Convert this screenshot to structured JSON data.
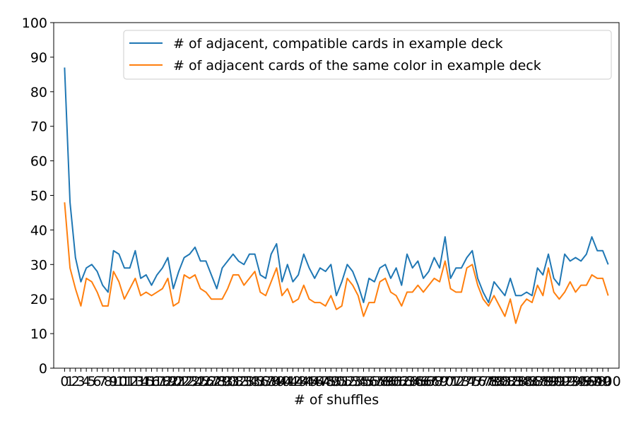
{
  "chart_data": {
    "type": "line",
    "xlabel": "# of shuffles",
    "ylabel": "",
    "ylim": [
      0,
      100
    ],
    "yticks": [
      0,
      10,
      20,
      30,
      40,
      50,
      60,
      70,
      80,
      90,
      100
    ],
    "xlim": [
      -2,
      102
    ],
    "grid": false,
    "legend_position": "top-right",
    "x": [
      0,
      1,
      2,
      3,
      4,
      5,
      6,
      7,
      8,
      9,
      10,
      11,
      12,
      13,
      14,
      15,
      16,
      17,
      18,
      19,
      20,
      21,
      22,
      23,
      24,
      25,
      26,
      27,
      28,
      29,
      30,
      31,
      32,
      33,
      34,
      35,
      36,
      37,
      38,
      39,
      40,
      41,
      42,
      43,
      44,
      45,
      46,
      47,
      48,
      49,
      50,
      51,
      52,
      53,
      54,
      55,
      56,
      57,
      58,
      59,
      60,
      61,
      62,
      63,
      64,
      65,
      66,
      67,
      68,
      69,
      70,
      71,
      72,
      73,
      74,
      75,
      76,
      77,
      78,
      79,
      80,
      81,
      82,
      83,
      84,
      85,
      86,
      87,
      88,
      89,
      90,
      91,
      92,
      93,
      94,
      95,
      96,
      97,
      98,
      99,
      100
    ],
    "series": [
      {
        "name": "# of adjacent, compatible cards in example deck",
        "color": "#1f77b4",
        "values": [
          87,
          48,
          32,
          25,
          29,
          30,
          28,
          24,
          22,
          34,
          33,
          29,
          29,
          34,
          26,
          27,
          24,
          27,
          29,
          32,
          23,
          28,
          32,
          33,
          35,
          31,
          31,
          27,
          23,
          29,
          31,
          33,
          31,
          30,
          33,
          33,
          27,
          26,
          33,
          36,
          25,
          30,
          25,
          27,
          33,
          29,
          26,
          29,
          28,
          30,
          21,
          25,
          30,
          28,
          24,
          19,
          26,
          25,
          29,
          30,
          26,
          29,
          24,
          33,
          29,
          31,
          26,
          28,
          32,
          29,
          38,
          26,
          29,
          29,
          32,
          34,
          26,
          22,
          19,
          25,
          23,
          21,
          26,
          21,
          21,
          22,
          21,
          29,
          27,
          33,
          26,
          24,
          33,
          31,
          32,
          31,
          33,
          38,
          34,
          34,
          30
        ]
      },
      {
        "name": "# of adjacent cards of the same color in example deck",
        "color": "#ff7f0e",
        "values": [
          48,
          29,
          23,
          18,
          26,
          25,
          22,
          18,
          18,
          28,
          25,
          20,
          23,
          26,
          21,
          22,
          21,
          22,
          23,
          26,
          18,
          19,
          27,
          26,
          27,
          23,
          22,
          20,
          20,
          20,
          23,
          27,
          27,
          24,
          26,
          28,
          22,
          21,
          25,
          29,
          21,
          23,
          19,
          20,
          24,
          20,
          19,
          19,
          18,
          21,
          17,
          18,
          26,
          24,
          21,
          15,
          19,
          19,
          25,
          26,
          22,
          21,
          18,
          22,
          22,
          24,
          22,
          24,
          26,
          25,
          31,
          23,
          22,
          22,
          29,
          30,
          24,
          20,
          18,
          21,
          18,
          15,
          20,
          13,
          18,
          20,
          19,
          24,
          21,
          29,
          22,
          20,
          22,
          25,
          22,
          24,
          24,
          27,
          26,
          26,
          21
        ]
      }
    ]
  }
}
